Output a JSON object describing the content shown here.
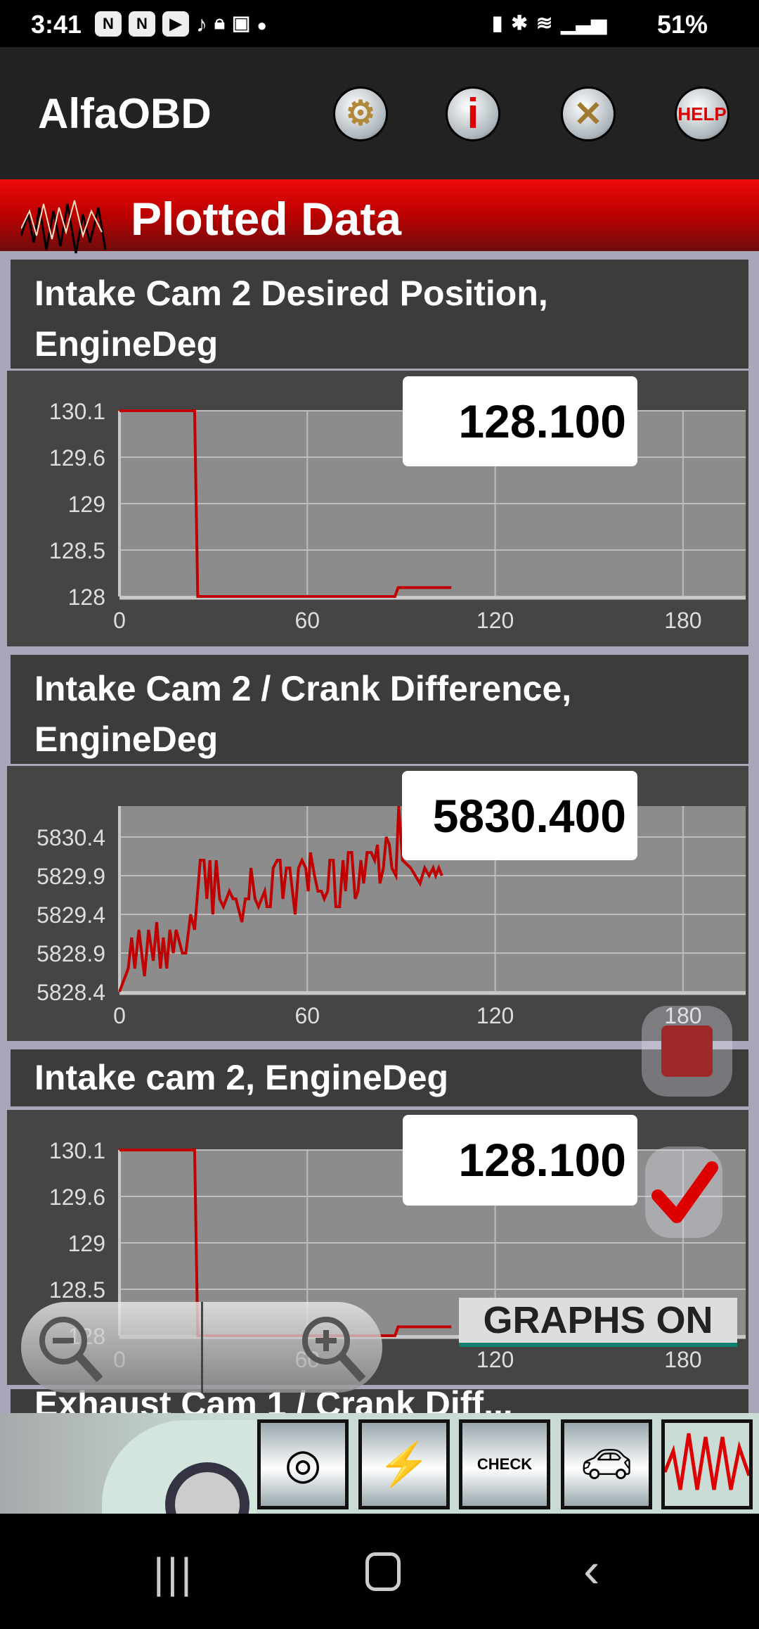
{
  "status_bar": {
    "time": "3:41",
    "battery": "51%",
    "left_icons": [
      "nine-icon",
      "nine-icon",
      "youtube-icon",
      "tiktok-icon",
      "lock-icon",
      "gallery-icon",
      "dot-icon"
    ],
    "right_icons": [
      "battery-saver-icon",
      "bluetooth-icon",
      "wifi-icon",
      "signal-icon"
    ]
  },
  "app_bar": {
    "title": "AlfaOBD",
    "buttons": [
      {
        "name": "settings",
        "icon": "gears-icon"
      },
      {
        "name": "info",
        "icon": "info-icon",
        "label": "i"
      },
      {
        "name": "tools",
        "icon": "wrench-hammer-icon"
      },
      {
        "name": "help",
        "icon": "help-icon",
        "label": "HELP"
      }
    ]
  },
  "header": {
    "title": "Plotted Data"
  },
  "panels": [
    {
      "title": "Intake Cam 2 Desired Position, EngineDeg",
      "value": "128.100"
    },
    {
      "title": "Intake Cam 2 / Crank Difference, EngineDeg",
      "value": "5830.400"
    },
    {
      "title": "Intake cam 2, EngineDeg",
      "value": "128.100"
    },
    {
      "title": "Exhaust Cam 1 / Crank Diff..."
    }
  ],
  "controls": {
    "graphs_button": "GRAPHS ON",
    "zoom_out": "zoom-out-icon",
    "zoom_in": "zoom-in-icon",
    "stop": "stop-icon",
    "confirm": "checkmark-icon"
  },
  "footer": {
    "icons": [
      "immobilizer-key-icon",
      "battery-icon",
      "check-engine-icon",
      "car-hood-icon",
      "graph-icon"
    ],
    "check_label": "CHECK"
  },
  "colors": {
    "accent": "#e00000",
    "plot_bg": "#8c8c8c",
    "line": "#c00000"
  },
  "chart_data": [
    {
      "type": "line",
      "xlim": [
        0,
        200
      ],
      "ylim": [
        128,
        130.1
      ],
      "xticks": [
        "0",
        "60",
        "120",
        "180"
      ],
      "yticks": [
        "130.1",
        "129.6",
        "129",
        "128.5",
        "128"
      ],
      "grid": true,
      "series": [
        {
          "x": [
            0,
            24,
            25,
            88,
            89,
            106
          ],
          "y": [
            130.1,
            130.1,
            128,
            128,
            128.1,
            128.1
          ]
        }
      ]
    },
    {
      "type": "line",
      "xlim": [
        0,
        200
      ],
      "ylim": [
        5828.4,
        5830.8
      ],
      "xticks": [
        "0",
        "60",
        "120",
        "180"
      ],
      "yticks": [
        "5830.4",
        "5829.9",
        "5829.4",
        "5828.9",
        "5828.4"
      ],
      "grid": true,
      "series": [
        {
          "x": [
            0,
            2.8,
            3.9,
            4.9,
            6.2,
            8,
            9.3,
            10.8,
            11.9,
            13.1,
            14,
            15.1,
            16.1,
            17.2,
            18.1,
            20.1,
            21.2,
            22.7,
            24,
            25.8,
            27,
            27.9,
            28.9,
            29.8,
            30.9,
            32,
            33.2,
            35.1,
            36.3,
            37.2,
            39.1,
            40.2,
            41.3,
            42,
            43.3,
            44.4,
            46.4,
            47.1,
            48.2,
            49.1,
            50.4,
            51.3,
            52.2,
            53.3,
            54.4,
            56.1,
            57.2,
            58.3,
            59.5,
            60.3,
            61,
            62.3,
            63.4,
            64.5,
            65.4,
            66.5,
            67.2,
            68.3,
            69.1,
            70.3,
            71.4,
            72.2,
            73.1,
            74.2,
            75.3,
            76.2,
            77.1,
            78,
            79.1,
            80.4,
            81.5,
            82.4,
            83.2,
            84.3,
            85.2,
            86.2,
            87,
            88.3,
            89.2,
            90.4,
            93,
            96,
            97.5,
            98.9,
            100.2,
            101,
            102,
            103
          ],
          "y": [
            5828.4,
            5828.7,
            5829.1,
            5828.7,
            5829.2,
            5828.6,
            5829.2,
            5828.8,
            5829.3,
            5828.7,
            5829.1,
            5828.7,
            5829.2,
            5828.9,
            5829.2,
            5828.9,
            5828.9,
            5829.4,
            5829.2,
            5830.1,
            5830.1,
            5829.6,
            5830.1,
            5829.4,
            5830.1,
            5829.6,
            5829.5,
            5829.7,
            5829.6,
            5829.6,
            5829.3,
            5829.6,
            5829.6,
            5830,
            5829.6,
            5829.5,
            5829.7,
            5829.5,
            5829.5,
            5830,
            5830.1,
            5830.1,
            5829.6,
            5830,
            5830,
            5829.4,
            5830,
            5830.1,
            5830,
            5829.7,
            5830.2,
            5829.9,
            5829.7,
            5829.7,
            5829.6,
            5829.7,
            5830.1,
            5830.1,
            5829.5,
            5829.5,
            5830.1,
            5829.7,
            5830.2,
            5830.2,
            5829.6,
            5829.7,
            5830.1,
            5829.8,
            5830.2,
            5830.2,
            5830.1,
            5830.3,
            5829.8,
            5830,
            5830.4,
            5830.3,
            5830,
            5829.9,
            5830.8,
            5830.1,
            5830,
            5829.8,
            5830,
            5829.9,
            5830,
            5829.9,
            5830,
            5829.9
          ]
        }
      ]
    },
    {
      "type": "line",
      "xlim": [
        0,
        200
      ],
      "ylim": [
        128,
        130.1
      ],
      "xticks": [
        "0",
        "60",
        "120",
        "180"
      ],
      "yticks": [
        "130.1",
        "129.6",
        "129",
        "128.5",
        "128"
      ],
      "grid": true,
      "series": [
        {
          "x": [
            0,
            24,
            25,
            88,
            89,
            106
          ],
          "y": [
            130.1,
            130.1,
            128,
            128,
            128.1,
            128.1
          ]
        }
      ]
    }
  ]
}
